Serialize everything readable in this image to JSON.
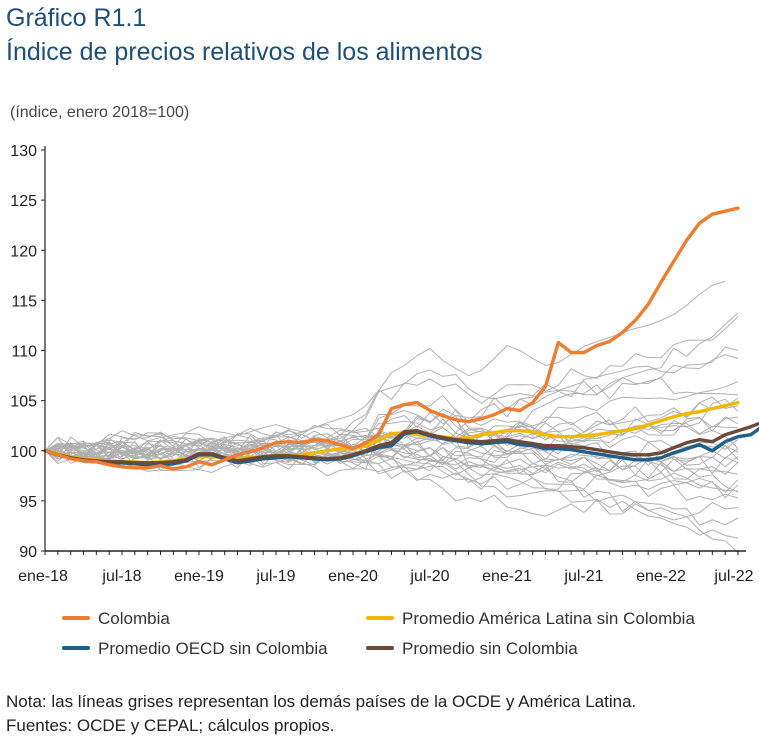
{
  "title": "Gráfico R1.1",
  "subtitle": "Índice de precios relativos de los alimentos",
  "unit_label": "(índice, enero 2018=100)",
  "note": "Nota: las líneas grises representan los demás países de la OCDE y América Latina.",
  "source": "Fuentes: OCDE y CEPAL; cálculos propios.",
  "chart_data": {
    "type": "line",
    "x_months_start": "2018-01",
    "x_tick_labels": [
      "ene-18",
      "jul-18",
      "ene-19",
      "jul-19",
      "ene-20",
      "jul-20",
      "ene-21",
      "jul-21",
      "ene-22",
      "jul-22"
    ],
    "y_ticks": [
      90,
      95,
      100,
      105,
      110,
      115,
      120,
      125,
      130
    ],
    "ylim": [
      90,
      130
    ],
    "legend_position": "bottom",
    "series": [
      {
        "name": "Colombia",
        "color": "#ed7d31",
        "values": [
          100,
          99.6,
          99.2,
          99.0,
          98.9,
          98.6,
          98.4,
          98.3,
          98.3,
          98.5,
          98.2,
          98.4,
          98.9,
          98.6,
          99.1,
          99.6,
          99.9,
          100.3,
          100.8,
          100.9,
          100.8,
          101.1,
          101.0,
          100.6,
          100.2,
          100.8,
          101.6,
          104.2,
          104.6,
          104.8,
          104.0,
          103.5,
          103.1,
          102.9,
          103.2,
          103.6,
          104.2,
          104.0,
          104.8,
          106.4,
          110.8,
          109.8,
          109.8,
          110.5,
          110.9,
          111.8,
          113.0,
          114.6,
          116.8,
          118.9,
          121.0,
          122.7,
          123.6,
          123.9,
          124.2
        ]
      },
      {
        "name": "Promedio América Latina sin Colombia",
        "color": "#f0b800",
        "values": [
          100,
          99.7,
          99.4,
          99.2,
          99.1,
          99.0,
          98.9,
          98.9,
          98.8,
          98.9,
          99.0,
          99.2,
          99.4,
          99.4,
          99.3,
          99.2,
          99.3,
          99.4,
          99.5,
          99.6,
          99.6,
          99.8,
          100.0,
          100.2,
          100.2,
          100.5,
          101.0,
          101.7,
          101.8,
          101.6,
          101.5,
          101.4,
          101.2,
          101.3,
          101.6,
          101.8,
          102.0,
          102.0,
          101.9,
          101.6,
          101.4,
          101.4,
          101.5,
          101.6,
          101.8,
          102.0,
          102.2,
          102.6,
          103.0,
          103.4,
          103.7,
          103.9,
          104.2,
          104.5,
          104.8
        ]
      },
      {
        "name": "Promedio OECD sin Colombia",
        "color": "#1f5f8b",
        "values": [
          100,
          99.6,
          99.3,
          99.0,
          98.9,
          98.8,
          98.8,
          98.7,
          98.6,
          98.6,
          98.7,
          99.0,
          99.6,
          99.6,
          99.2,
          98.8,
          99.0,
          99.2,
          99.3,
          99.4,
          99.3,
          99.2,
          99.1,
          99.2,
          99.5,
          99.9,
          100.3,
          100.5,
          101.7,
          101.9,
          101.5,
          101.2,
          101.0,
          100.8,
          100.7,
          100.8,
          100.9,
          100.6,
          100.5,
          100.2,
          100.2,
          100.1,
          99.9,
          99.7,
          99.5,
          99.3,
          99.1,
          99.1,
          99.3,
          99.8,
          100.2,
          100.6,
          100.0,
          100.9,
          101.4,
          101.6,
          102.5
        ]
      },
      {
        "name": "Promedio sin Colombia",
        "color": "#6b4a3a",
        "values": [
          100,
          99.6,
          99.3,
          99.1,
          99.0,
          98.9,
          98.9,
          98.8,
          98.8,
          98.8,
          98.9,
          99.1,
          99.7,
          99.7,
          99.3,
          99.0,
          99.2,
          99.4,
          99.5,
          99.5,
          99.4,
          99.3,
          99.2,
          99.3,
          99.6,
          100.0,
          100.5,
          100.8,
          101.9,
          102.0,
          101.6,
          101.3,
          101.1,
          101.0,
          100.9,
          101.0,
          101.1,
          100.9,
          100.7,
          100.5,
          100.5,
          100.4,
          100.3,
          100.1,
          99.9,
          99.7,
          99.6,
          99.6,
          99.8,
          100.3,
          100.8,
          101.1,
          100.9,
          101.6,
          102.0,
          102.4,
          102.9
        ]
      }
    ],
    "gray_series_color": "#b0b0b0",
    "gray_series": [
      [
        100,
        100.2,
        100.5,
        100.3,
        100.8,
        101.2,
        102.0,
        101.5,
        101.0,
        101.3,
        101.6,
        101.8,
        102.4,
        102.0,
        101.8,
        101.5,
        101.9,
        102.3,
        102.6,
        102.2,
        101.9,
        102.3,
        102.8,
        103.2,
        103.6,
        104.5,
        106.0,
        107.8,
        108.5,
        109.5,
        110.2,
        109.0,
        108.2,
        107.5,
        108.0,
        109.2,
        110.5,
        110.0,
        109.2,
        108.5,
        108.8,
        109.6,
        110.4,
        110.9,
        111.3,
        111.8,
        112.2,
        112.5,
        113.0,
        113.6,
        114.5,
        115.6,
        116.5,
        116.9
      ]
    ],
    "gray_note": "gray lines represent other OECD and Latin American countries"
  },
  "legend": {
    "colombia": "Colombia",
    "latam": "Promedio América Latina sin Colombia",
    "oecd": "Promedio OECD sin Colombia",
    "all": "Promedio sin Colombia"
  }
}
